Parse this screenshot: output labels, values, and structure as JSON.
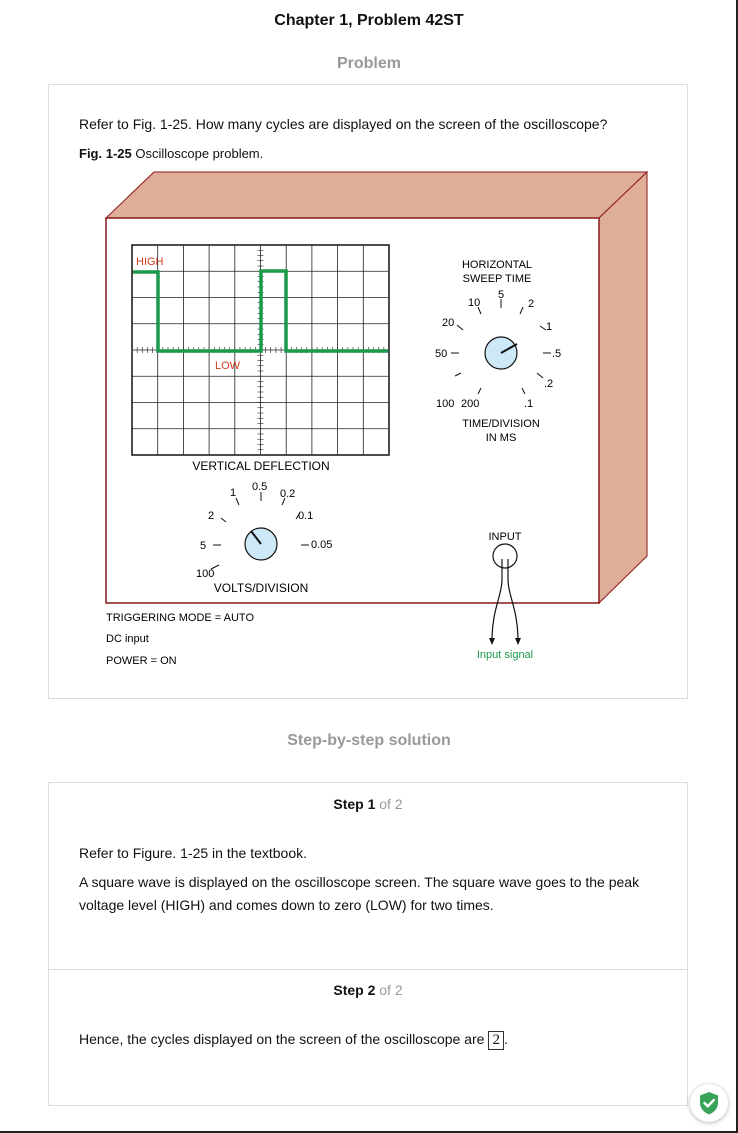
{
  "header": {
    "title": "Chapter 1, Problem 42ST",
    "problem_heading": "Problem",
    "solution_heading": "Step-by-step solution"
  },
  "problem": {
    "question": "Refer to Fig. 1-25. How many cycles are displayed on the screen of the oscilloscope?",
    "caption_label": "Fig. 1-25",
    "caption_text": " Oscilloscope problem."
  },
  "figure": {
    "high_label": "HIGH",
    "low_label": "LOW",
    "vertical_deflection": "VERTICAL DEFLECTION",
    "volts_division": "VOLTS/DIVISION",
    "volts_ticks": [
      "100",
      "5",
      "2",
      "1",
      "0.5",
      "0.2",
      "0.1",
      "0.05"
    ],
    "horizontal_title_1": "HORIZONTAL",
    "horizontal_title_2": "SWEEP TIME",
    "time_ticks": [
      "200",
      "100",
      "50",
      "20",
      "10",
      "5",
      "2",
      "1",
      ".5",
      ".2",
      ".1"
    ],
    "time_division_1": "TIME/DIVISION",
    "time_division_2": "IN MS",
    "input_label": "INPUT",
    "input_signal": "Input signal",
    "triggering": "TRIGGERING MODE = AUTO",
    "dc_input": "DC  input",
    "power": "POWER = ON",
    "colors": {
      "case_side": "#dfae98",
      "case_border": "#8b1a1a",
      "trace": "#1a9a4a",
      "knob": "#cde8f7",
      "label_red": "#d23a1e",
      "signal_green": "#1a9a4a"
    }
  },
  "steps": [
    {
      "label": "Step 1",
      "of": " of 2",
      "paragraphs": [
        "Refer to Figure. 1-25 in the textbook.",
        "A square wave is displayed on the oscilloscope screen. The square wave goes to the peak voltage level (HIGH) and comes down to zero (LOW) for two times."
      ]
    },
    {
      "label": "Step 2",
      "of": " of 2",
      "text": "Hence, the cycles displayed on the screen of the oscilloscope are",
      "answer": "2",
      "suffix": "."
    }
  ],
  "badge": {
    "icon": "shield-check-icon",
    "color": "#3aa35a"
  }
}
